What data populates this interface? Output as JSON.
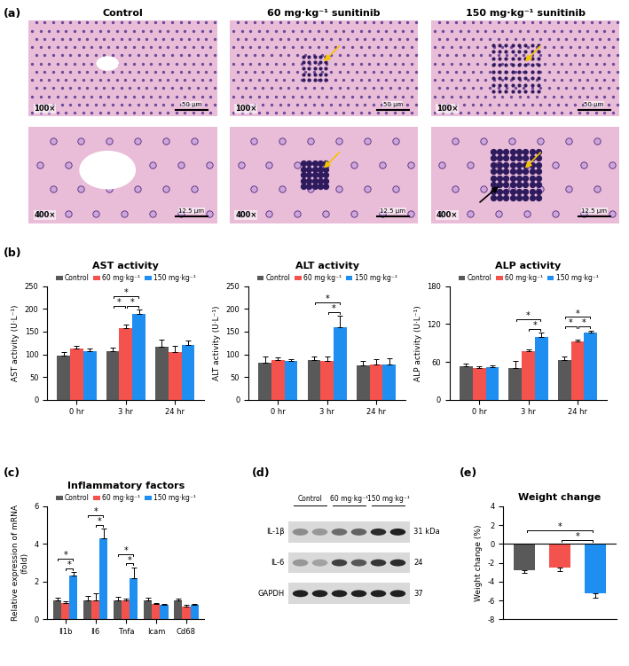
{
  "histology": {
    "panel_label": "(a)",
    "columns": [
      "Control",
      "60 mg·kg⁻¹ sunitinib",
      "150 mg·kg⁻¹ sunitinib"
    ],
    "rows": [
      {
        "magnification": "100×",
        "scale_bar": "50 μm"
      },
      {
        "magnification": "400×",
        "scale_bar": "12.5 μm"
      }
    ]
  },
  "western_blot": {
    "panel_label": "(d)",
    "lanes": [
      "Control",
      "60 mg·kg⁻¹",
      "150 mg·kg⁻¹"
    ],
    "bands": [
      {
        "name": "IL-1β",
        "size": "31 kDa"
      },
      {
        "name": "IL-6",
        "size": "24"
      },
      {
        "name": "GAPDH",
        "size": "37"
      }
    ]
  },
  "chart_data": [
    {
      "type": "bar",
      "panel_label": "(b)",
      "title": "AST activity",
      "y_label": "AST activity (U·L⁻¹)",
      "categories": [
        "0 hr",
        "3 hr",
        "24 hr"
      ],
      "series": [
        {
          "name": "Control",
          "color": "#595959",
          "values": [
            97,
            107,
            117
          ],
          "errors": [
            8,
            7,
            15
          ]
        },
        {
          "name": "60 mg·kg⁻¹",
          "color": "#f4524d",
          "values": [
            112,
            157,
            105
          ],
          "errors": [
            6,
            8,
            14
          ]
        },
        {
          "name": "150 mg·kg⁻¹",
          "color": "#1f8ef1",
          "values": [
            107,
            190,
            120
          ],
          "errors": [
            6,
            8,
            10
          ]
        }
      ],
      "ylim": [
        0,
        250
      ],
      "yticks": [
        0,
        50,
        100,
        150,
        200,
        250
      ],
      "legend": "top",
      "significance": [
        {
          "category": "3 hr",
          "between": [
            "Control",
            "60 mg·kg⁻¹"
          ],
          "label": "*"
        },
        {
          "category": "3 hr",
          "between": [
            "60 mg·kg⁻¹",
            "150 mg·kg⁻¹"
          ],
          "label": "*"
        },
        {
          "category": "3 hr",
          "between": [
            "Control",
            "150 mg·kg⁻¹"
          ],
          "label": "*"
        }
      ]
    },
    {
      "type": "bar",
      "title": "ALT activity",
      "y_label": "ALT activity (U·L⁻¹)",
      "categories": [
        "0 hr",
        "3 hr",
        "24 hr"
      ],
      "series": [
        {
          "name": "Control",
          "color": "#595959",
          "values": [
            82,
            87,
            75
          ],
          "errors": [
            13,
            8,
            10
          ]
        },
        {
          "name": "60 mg·kg⁻¹",
          "color": "#f4524d",
          "values": [
            87,
            85,
            78
          ],
          "errors": [
            6,
            10,
            12
          ]
        },
        {
          "name": "150 mg·kg⁻¹",
          "color": "#1f8ef1",
          "values": [
            85,
            160,
            78
          ],
          "errors": [
            4,
            25,
            13
          ]
        }
      ],
      "ylim": [
        0,
        250
      ],
      "yticks": [
        0,
        50,
        100,
        150,
        200,
        250
      ],
      "legend": "top",
      "significance": [
        {
          "category": "3 hr",
          "between": [
            "60 mg·kg⁻¹",
            "150 mg·kg⁻¹"
          ],
          "label": "*"
        },
        {
          "category": "3 hr",
          "between": [
            "Control",
            "150 mg·kg⁻¹"
          ],
          "label": "*"
        }
      ]
    },
    {
      "type": "bar",
      "title": "ALP activity",
      "y_label": "ALP activity (U·L⁻¹)",
      "categories": [
        "0 hr",
        "3 hr",
        "24 hr"
      ],
      "series": [
        {
          "name": "Control",
          "color": "#595959",
          "values": [
            53,
            50,
            63
          ],
          "errors": [
            4,
            12,
            6
          ]
        },
        {
          "name": "60 mg·kg⁻¹",
          "color": "#f4524d",
          "values": [
            50,
            77,
            93
          ],
          "errors": [
            3,
            3,
            2
          ]
        },
        {
          "name": "150 mg·kg⁻¹",
          "color": "#1f8ef1",
          "values": [
            52,
            100,
            107
          ],
          "errors": [
            3,
            6,
            3
          ]
        }
      ],
      "ylim": [
        0,
        180
      ],
      "yticks": [
        0,
        60,
        120,
        180
      ],
      "legend": "top",
      "significance": [
        {
          "category": "3 hr",
          "between": [
            "60 mg·kg⁻¹",
            "150 mg·kg⁻¹"
          ],
          "label": "*"
        },
        {
          "category": "3 hr",
          "between": [
            "Control",
            "150 mg·kg⁻¹"
          ],
          "label": "*"
        },
        {
          "category": "24 hr",
          "between": [
            "Control",
            "60 mg·kg⁻¹"
          ],
          "label": "*"
        },
        {
          "category": "24 hr",
          "between": [
            "60 mg·kg⁻¹",
            "150 mg·kg⁻¹"
          ],
          "label": "*"
        },
        {
          "category": "24 hr",
          "between": [
            "Control",
            "150 mg·kg⁻¹"
          ],
          "label": "*"
        }
      ]
    },
    {
      "type": "bar",
      "panel_label": "(c)",
      "title": "Inflammatory factors",
      "y_label": "Relative expression of mRNA\n(fold)",
      "categories": [
        "Il1b",
        "Il6",
        "Tnfa",
        "Icam",
        "Cd68"
      ],
      "series": [
        {
          "name": "Control",
          "color": "#595959",
          "values": [
            1.0,
            1.0,
            1.0,
            1.0,
            1.0
          ],
          "errors": [
            0.15,
            0.25,
            0.2,
            0.15,
            0.1
          ]
        },
        {
          "name": "60 mg·kg⁻¹",
          "color": "#f4524d",
          "values": [
            0.85,
            1.0,
            1.0,
            0.8,
            0.7
          ],
          "errors": [
            0.1,
            0.4,
            0.1,
            0.05,
            0.05
          ]
        },
        {
          "name": "150 mg·kg⁻¹",
          "color": "#1f8ef1",
          "values": [
            2.3,
            4.3,
            2.2,
            0.75,
            0.75
          ],
          "errors": [
            0.2,
            0.5,
            0.55,
            0.05,
            0.05
          ]
        }
      ],
      "ylim": [
        0,
        6
      ],
      "yticks": [
        0,
        2,
        4,
        6
      ],
      "legend": "top",
      "significance": [
        {
          "category": "Il1b",
          "between": [
            "60 mg·kg⁻¹",
            "150 mg·kg⁻¹"
          ],
          "label": "*"
        },
        {
          "category": "Il1b",
          "between": [
            "Control",
            "150 mg·kg⁻¹"
          ],
          "label": "*"
        },
        {
          "category": "Il6",
          "between": [
            "60 mg·kg⁻¹",
            "150 mg·kg⁻¹"
          ],
          "label": "*"
        },
        {
          "category": "Il6",
          "between": [
            "Control",
            "150 mg·kg⁻¹"
          ],
          "label": "*"
        },
        {
          "category": "Tnfa",
          "between": [
            "60 mg·kg⁻¹",
            "150 mg·kg⁻¹"
          ],
          "label": "*"
        },
        {
          "category": "Tnfa",
          "between": [
            "Control",
            "150 mg·kg⁻¹"
          ],
          "label": "*"
        }
      ]
    },
    {
      "type": "bar",
      "panel_label": "(e)",
      "title": "Weight change",
      "y_label": "Weight change (%)",
      "categories": [
        null,
        null,
        null
      ],
      "values": [
        -2.8,
        -2.5,
        -5.2
      ],
      "errors": [
        0.3,
        0.4,
        0.5
      ],
      "colors": [
        "#595959",
        "#f4524d",
        "#1f8ef1"
      ],
      "ylim": [
        -8,
        4
      ],
      "yticks": [
        -8,
        -6,
        -4,
        -2,
        0,
        2,
        4
      ],
      "tick_labels": "y",
      "significance": [
        {
          "between": [
            1,
            2
          ],
          "label": "*"
        },
        {
          "between": [
            0,
            2
          ],
          "label": "*"
        }
      ]
    }
  ]
}
